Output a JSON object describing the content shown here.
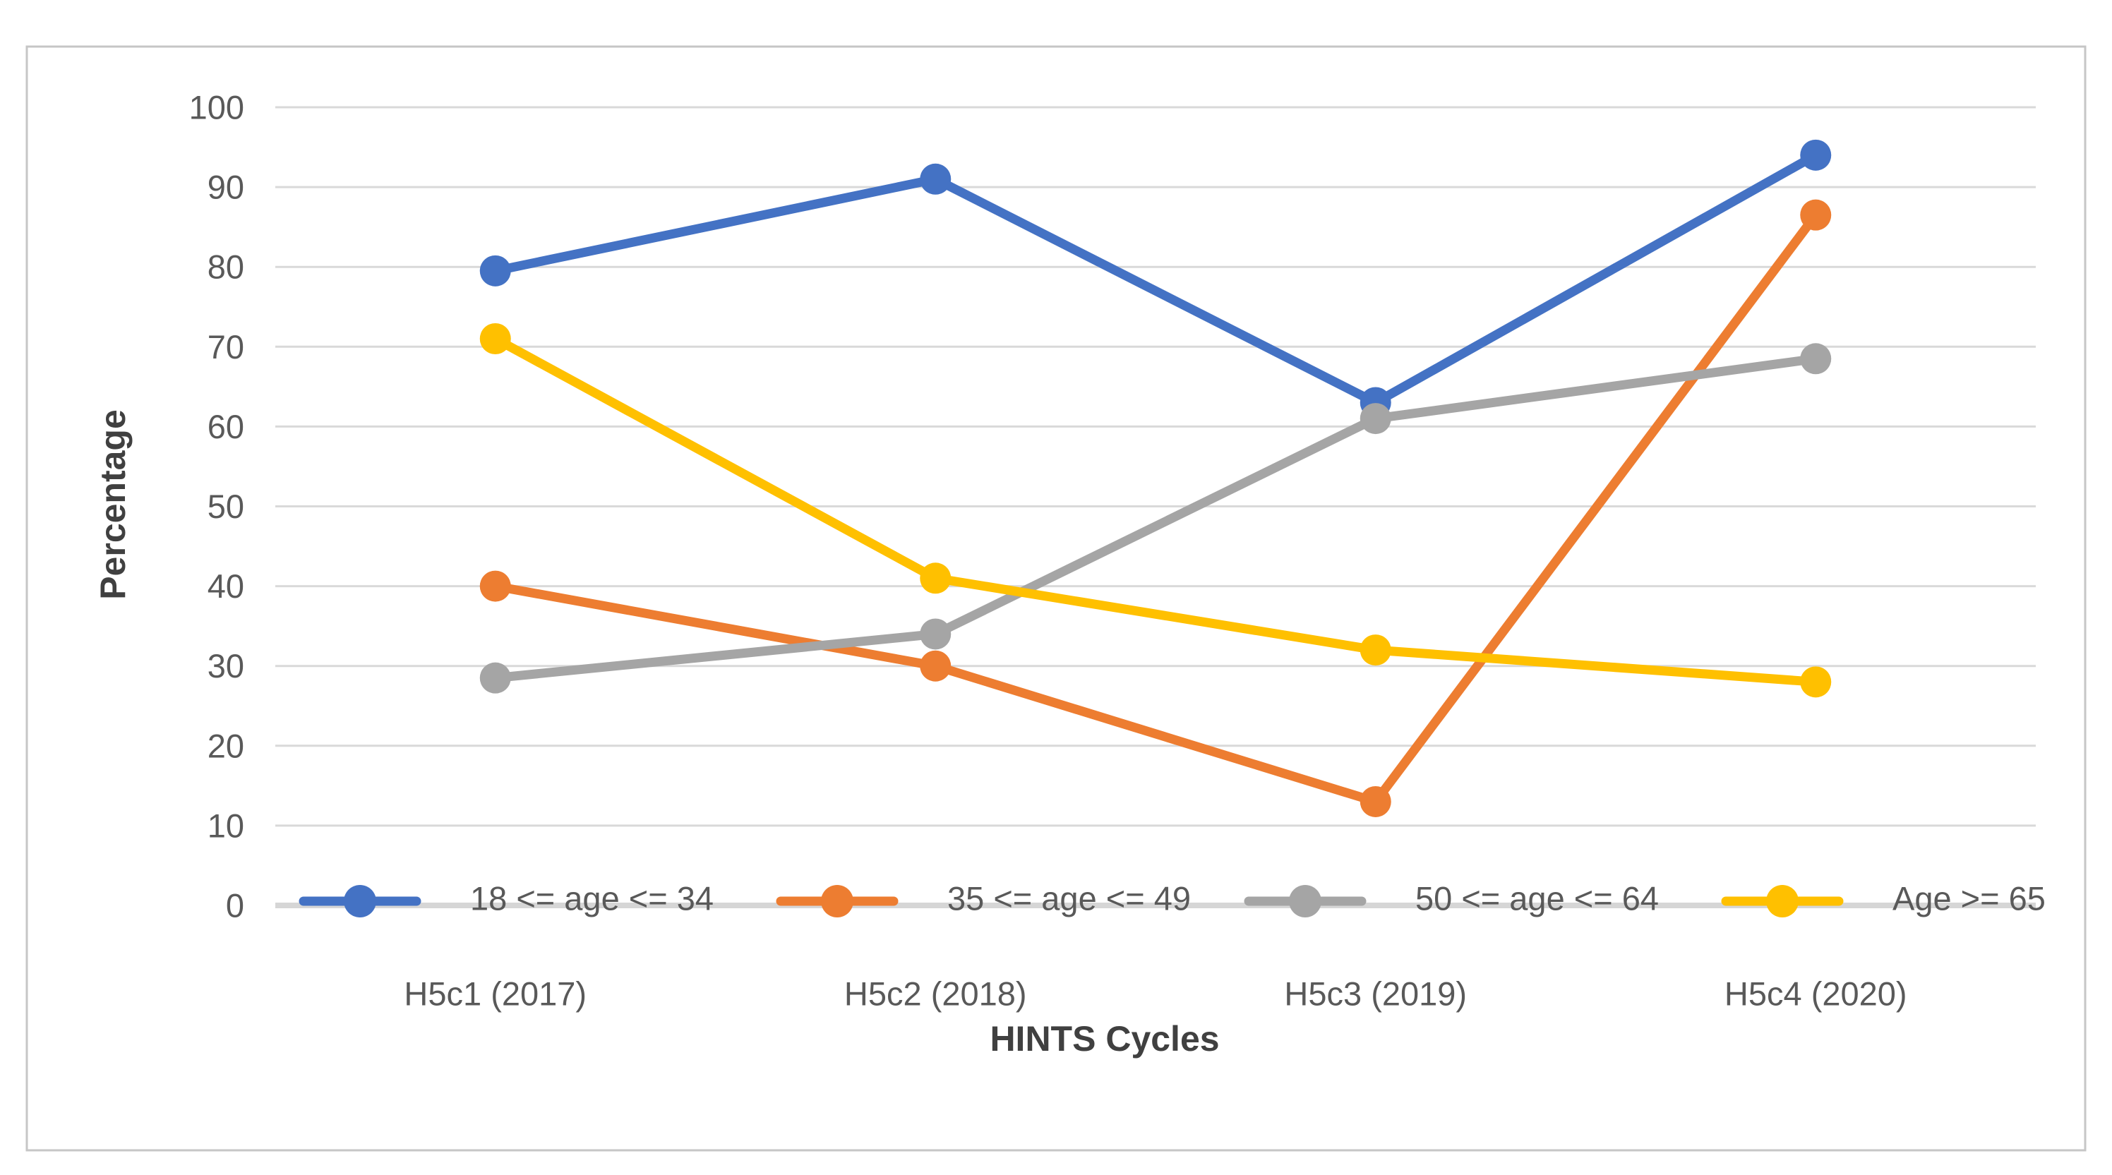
{
  "figure": {
    "background": "#ffffff",
    "frame_color": "#c6c6c6",
    "gridline_color": "#d9d9d9",
    "axisline_color": "#d6d6d6",
    "tick_text_color": "#595959",
    "title_text_color": "#404040"
  },
  "chart_data": {
    "type": "line",
    "title": "",
    "xlabel": "HINTS Cycles",
    "ylabel": "Percentage",
    "categories": [
      "H5c1 (2017)",
      "H5c2 (2018)",
      "H5c3 (2019)",
      "H5c4 (2020)"
    ],
    "series": [
      {
        "name": "18 <= age <= 34",
        "color": "#4472C4",
        "values": [
          79.5,
          91,
          63,
          94
        ]
      },
      {
        "name": "35 <= age <= 49",
        "color": "#ED7D31",
        "values": [
          40,
          30,
          13,
          86.5
        ]
      },
      {
        "name": "50 <= age <= 64",
        "color": "#A5A5A5",
        "values": [
          28.5,
          34,
          61,
          68.5
        ]
      },
      {
        "name": "Age >= 65",
        "color": "#FFC000",
        "values": [
          71,
          41,
          32,
          28
        ]
      }
    ],
    "y_axis": {
      "min": 0,
      "max": 100,
      "step": 10,
      "tick_labels": [
        "0",
        "10",
        "20",
        "30",
        "40",
        "50",
        "60",
        "70",
        "80",
        "90",
        "100"
      ]
    },
    "grid": true,
    "legend_position": "bottom-inline-at-zero-axis",
    "marker": "circle"
  }
}
